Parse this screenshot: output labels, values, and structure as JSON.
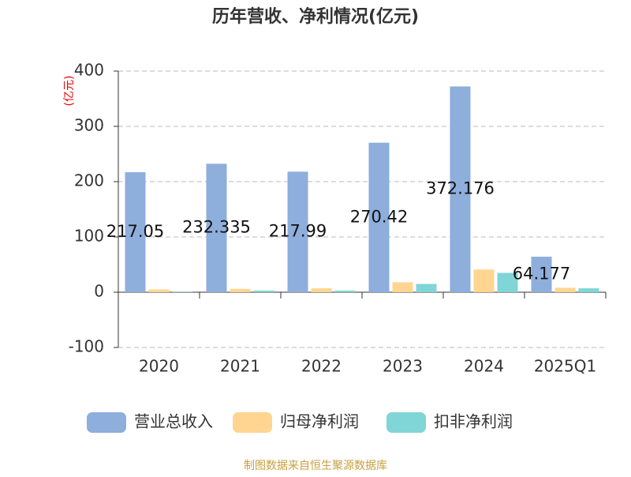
{
  "chart_data": {
    "type": "bar",
    "title": "历年营收、净利情况(亿元)",
    "y_label": "(亿元)",
    "categories": [
      "2020",
      "2021",
      "2022",
      "2023",
      "2024",
      "2025Q1"
    ],
    "series": [
      {
        "name": "营业总收入",
        "color": "#8eaedc",
        "values": [
          217.05,
          232.335,
          217.99,
          270.42,
          372.176,
          64.177
        ],
        "value_labels": [
          "217.05",
          "232.335",
          "217.99",
          "270.42",
          "372.176",
          "64.177"
        ]
      },
      {
        "name": "归母净利润",
        "color": "#ffd591",
        "values": [
          5,
          6,
          7,
          18,
          41,
          8
        ]
      },
      {
        "name": "扣非净利润",
        "color": "#80d5d6",
        "values": [
          0.5,
          3,
          3,
          15,
          35,
          7
        ]
      }
    ],
    "ylim": [
      -100,
      400
    ],
    "yticks": [
      -100,
      0,
      100,
      200,
      300,
      400
    ],
    "grid": true,
    "legend": "bottom",
    "source": "制图数据来自恒生聚源数据库"
  }
}
